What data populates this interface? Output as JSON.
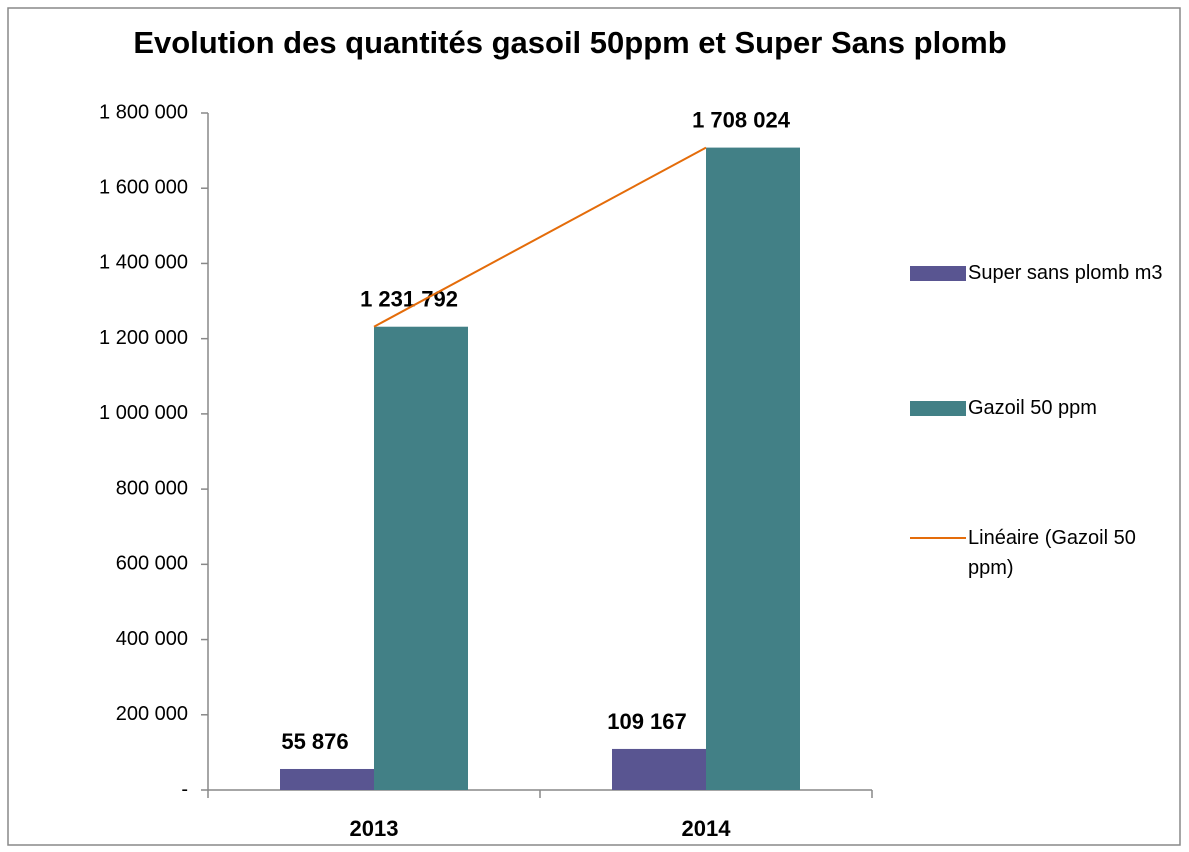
{
  "chart_data": {
    "type": "bar",
    "title": "Evolution des quantités gasoil 50ppm et Super Sans plomb",
    "categories": [
      "2013",
      "2014"
    ],
    "series": [
      {
        "name": "Super sans plomb m3",
        "color": "#595591",
        "values": [
          55876,
          109167
        ],
        "value_labels": [
          "55 876",
          "109 167"
        ]
      },
      {
        "name": "Gazoil 50 ppm",
        "color": "#428086",
        "values": [
          1231792,
          1708024
        ],
        "value_labels": [
          "1 231 792",
          "1 708 024"
        ]
      }
    ],
    "trendline": {
      "name": "Linéaire (Gazoil 50 ppm)",
      "color": "#e46c0a",
      "series": 1,
      "kind": "linear"
    },
    "ylim": [
      0,
      1800000
    ],
    "yticks": [
      {
        "value": 0,
        "label": "-"
      },
      {
        "value": 200000,
        "label": "200 000"
      },
      {
        "value": 400000,
        "label": "400 000"
      },
      {
        "value": 600000,
        "label": "600 000"
      },
      {
        "value": 800000,
        "label": "800 000"
      },
      {
        "value": 1000000,
        "label": "1 000 000"
      },
      {
        "value": 1200000,
        "label": "1 200 000"
      },
      {
        "value": 1400000,
        "label": "1 400 000"
      },
      {
        "value": 1600000,
        "label": "1 600 000"
      },
      {
        "value": 1800000,
        "label": "1 800 000"
      }
    ],
    "grid": false,
    "legend": "right"
  }
}
